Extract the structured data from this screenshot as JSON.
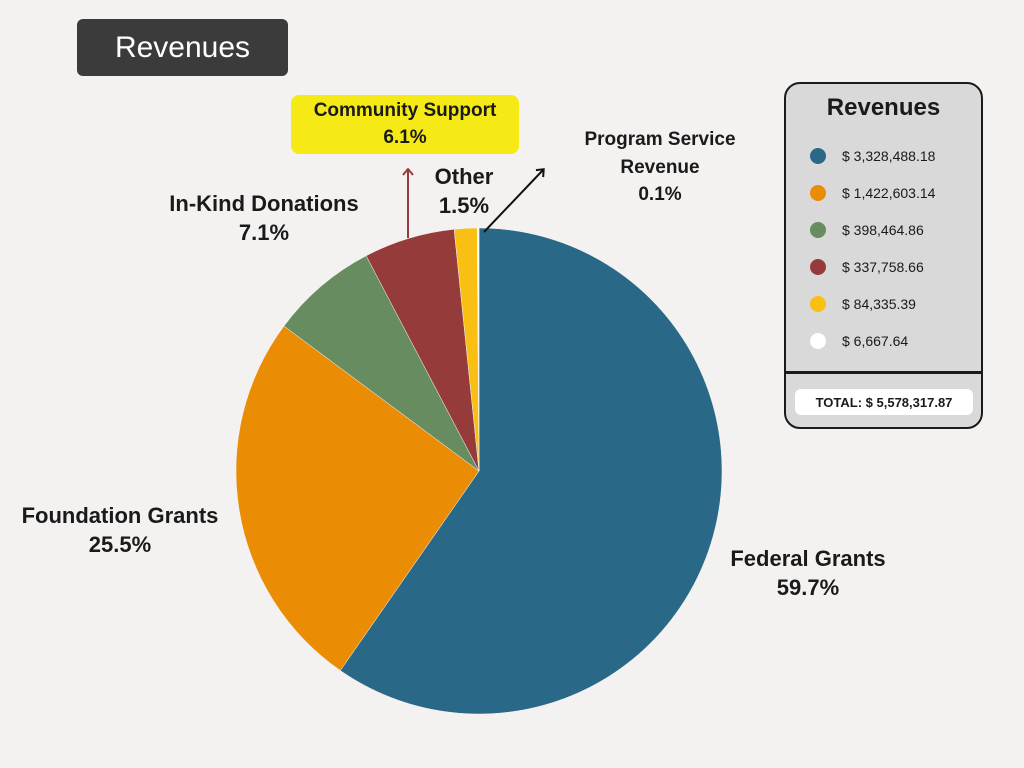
{
  "header": {
    "title": "Revenues"
  },
  "chart_data": {
    "type": "pie",
    "slices": [
      {
        "label": "Federal Grants",
        "percent_label": "59.7%",
        "value": 3328488.18,
        "color": "#2a6887"
      },
      {
        "label": "Foundation Grants",
        "percent_label": "25.5%",
        "value": 1422603.14,
        "color": "#ea8c04"
      },
      {
        "label": "In-Kind Donations",
        "percent_label": "7.1%",
        "value": 398464.86,
        "color": "#678c5f"
      },
      {
        "label": "Community Support",
        "percent_label": "6.1%",
        "value": 337758.66,
        "color": "#953c3a"
      },
      {
        "label": "Other",
        "percent_label": "1.5%",
        "value": 84335.39,
        "color": "#f9bf12"
      },
      {
        "label": "Program Service Revenue",
        "percent_label": "0.1%",
        "value": 6667.64,
        "color": "#ffffff"
      }
    ],
    "legend": {
      "title": "Revenues",
      "placement": "right",
      "items": [
        {
          "text": "$ 3,328,488.18",
          "color": "#2a6887"
        },
        {
          "text": "$ 1,422,603.14",
          "color": "#ea8c04"
        },
        {
          "text": "$ 398,464.86",
          "color": "#678c5f"
        },
        {
          "text": "$ 337,758.66",
          "color": "#953c3a"
        },
        {
          "text": "$ 84,335.39",
          "color": "#f9bf12"
        },
        {
          "text": "$ 6,667.64",
          "color": "#ffffff"
        }
      ],
      "total": "TOTAL: $ 5,578,317.87"
    },
    "annotations": {
      "program_service_line1": "Program Service",
      "program_service_line2": "Revenue"
    }
  }
}
